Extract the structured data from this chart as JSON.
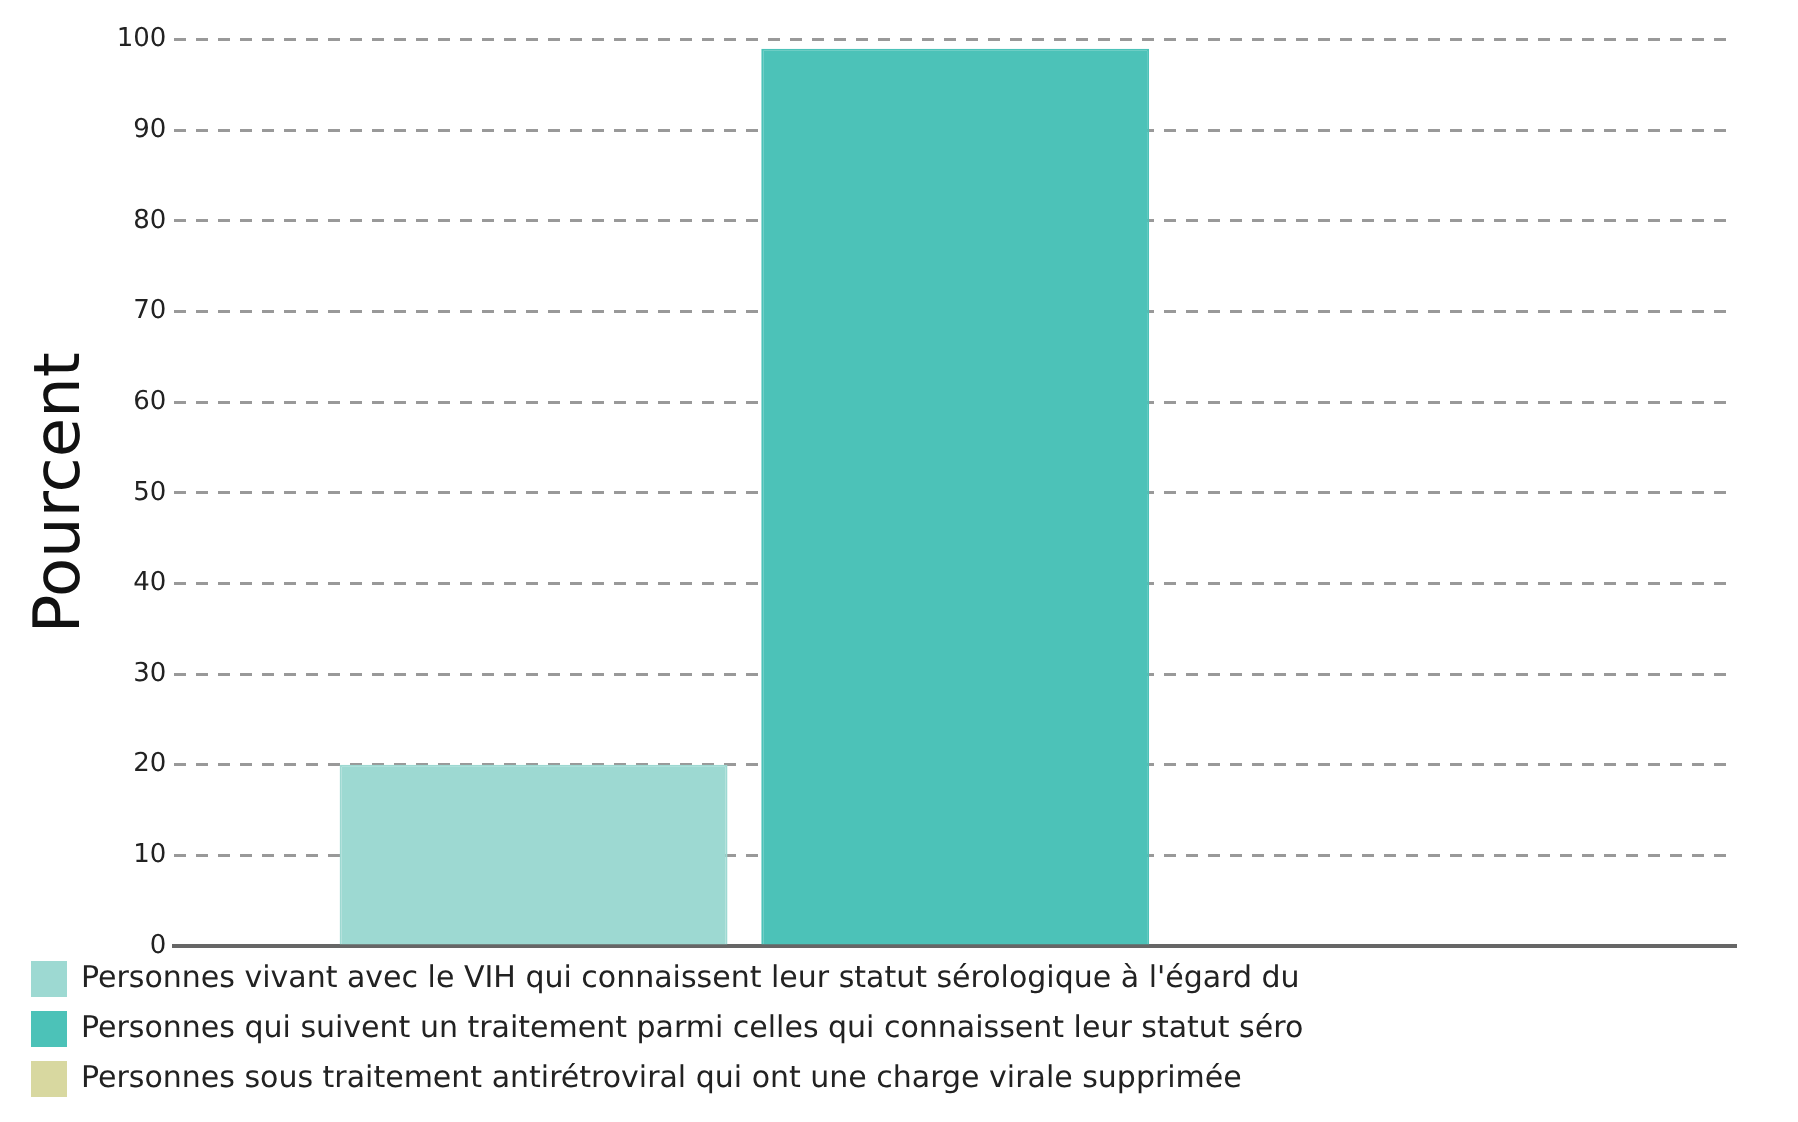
{
  "chart_data": {
    "type": "bar",
    "ylabel": "Pourcent",
    "categories": [
      null
    ],
    "series": [
      {
        "name": "Personnes vivant avec le VIH qui connaissent leur statut sérologique à l'égard du",
        "color": "#9dd9d2",
        "values": [
          20
        ]
      },
      {
        "name": "Personnes qui suivent un traitement parmi celles qui connaissent leur statut séro",
        "color": "#4cc2b8",
        "values": [
          99
        ]
      },
      {
        "name": "Personnes sous traitement antirétroviral qui ont une charge virale supprimée",
        "color": "#d8d8a0",
        "values": [
          null
        ]
      }
    ],
    "ylim": [
      0,
      100
    ],
    "yticks": [
      0,
      10,
      20,
      30,
      40,
      50,
      60,
      70,
      80,
      90,
      100
    ],
    "grid": "y",
    "legend": "bottom"
  }
}
